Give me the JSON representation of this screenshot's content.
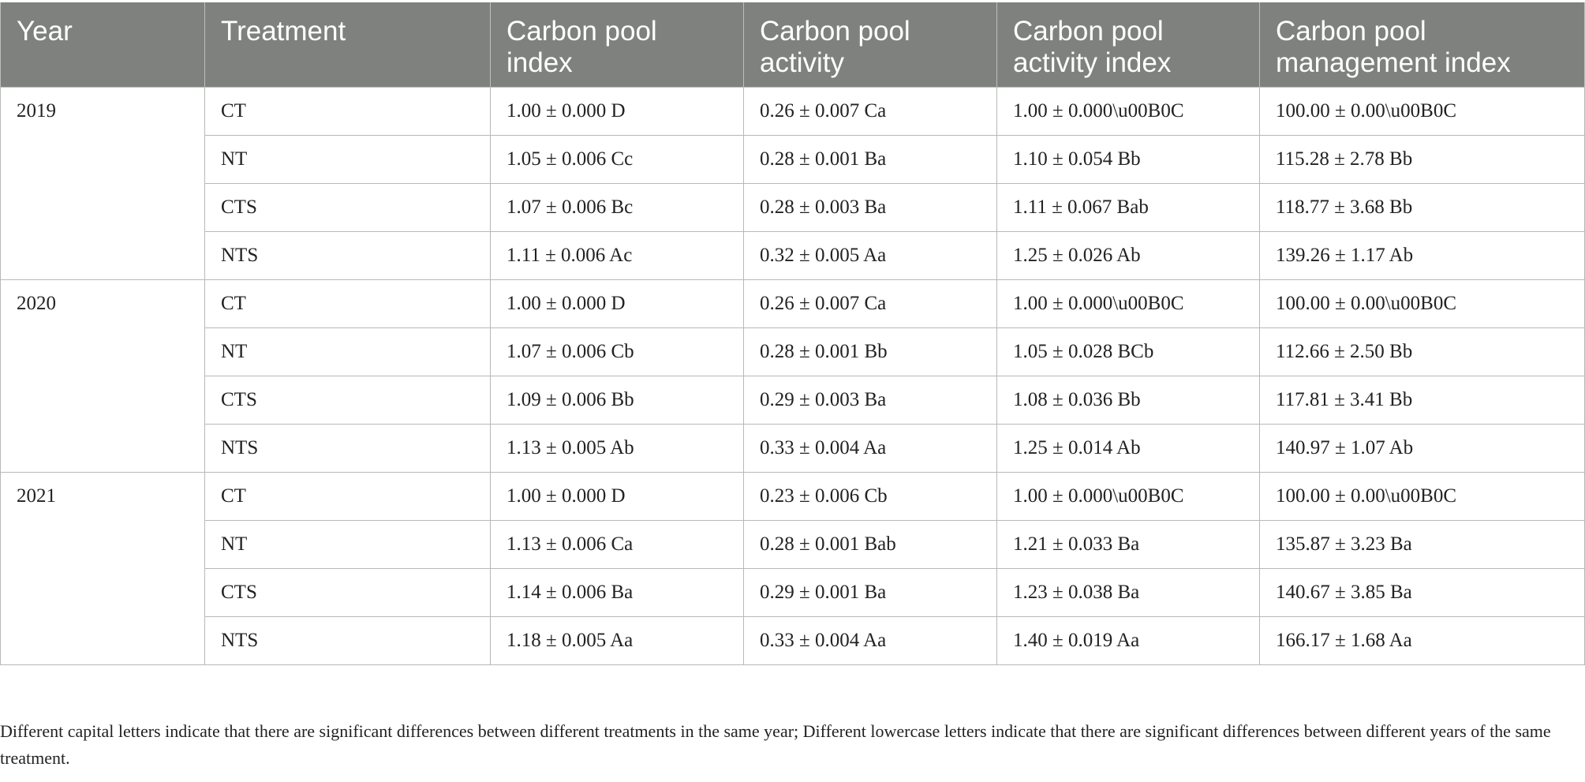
{
  "table": {
    "headers": [
      "Year",
      "Treatment",
      "Carbon pool index",
      "Carbon pool activity",
      "Carbon pool activity index",
      "Carbon pool management index"
    ],
    "groups": [
      {
        "year": "2019",
        "rows": [
          [
            "CT",
            "1.00 ± 0.000 D",
            "0.26 ± 0.007 Ca",
            "1.00 ± 0.000\\u00B0C",
            "100.00 ± 0.00\\u00B0C"
          ],
          [
            "NT",
            "1.05 ± 0.006 Cc",
            "0.28 ± 0.001 Ba",
            "1.10 ± 0.054 Bb",
            "115.28 ± 2.78 Bb"
          ],
          [
            "CTS",
            "1.07 ± 0.006 Bc",
            "0.28 ± 0.003 Ba",
            "1.11 ± 0.067 Bab",
            "118.77 ± 3.68 Bb"
          ],
          [
            "NTS",
            "1.11 ± 0.006 Ac",
            "0.32 ± 0.005 Aa",
            "1.25 ± 0.026 Ab",
            "139.26 ± 1.17 Ab"
          ]
        ]
      },
      {
        "year": "2020",
        "rows": [
          [
            "CT",
            "1.00 ± 0.000 D",
            "0.26 ± 0.007 Ca",
            "1.00 ± 0.000\\u00B0C",
            "100.00 ± 0.00\\u00B0C"
          ],
          [
            "NT",
            "1.07 ± 0.006 Cb",
            "0.28 ± 0.001 Bb",
            "1.05 ± 0.028 BCb",
            "112.66 ± 2.50 Bb"
          ],
          [
            "CTS",
            "1.09 ± 0.006 Bb",
            "0.29 ± 0.003 Ba",
            "1.08 ± 0.036 Bb",
            "117.81 ± 3.41 Bb"
          ],
          [
            "NTS",
            "1.13 ± 0.005 Ab",
            "0.33 ± 0.004 Aa",
            "1.25 ± 0.014 Ab",
            "140.97 ± 1.07 Ab"
          ]
        ]
      },
      {
        "year": "2021",
        "rows": [
          [
            "CT",
            "1.00 ± 0.000 D",
            "0.23 ± 0.006 Cb",
            "1.00 ± 0.000\\u00B0C",
            "100.00 ± 0.00\\u00B0C"
          ],
          [
            "NT",
            "1.13 ± 0.006 Ca",
            "0.28 ± 0.001 Bab",
            "1.21 ± 0.033 Ba",
            "135.87 ± 3.23 Ba"
          ],
          [
            "CTS",
            "1.14 ± 0.006 Ba",
            "0.29 ± 0.001 Ba",
            "1.23 ± 0.038 Ba",
            "140.67 ± 3.85 Ba"
          ],
          [
            "NTS",
            "1.18 ± 0.005 Aa",
            "0.33 ± 0.004 Aa",
            "1.40 ± 0.019 Aa",
            "166.17 ± 1.68 Aa"
          ]
        ]
      }
    ]
  },
  "footnote": "Different capital letters indicate that there are significant differences between different treatments in the same year; Different lowercase letters indicate that there are significant differences between different years of the same treatment."
}
